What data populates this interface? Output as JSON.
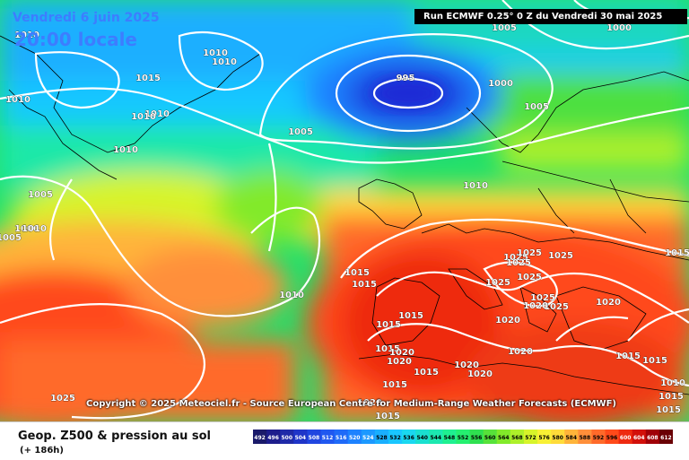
{
  "header": {
    "date": "Vendredi 6 juin 2025",
    "time": "20:00 locale",
    "run": "Run ECMWF 0.25° 0 Z du Vendredi 30 mai 2025"
  },
  "copyright": "Copyright © 2025 Meteociel.fr - Source European Centre for Medium-Range Weather Forecasts (ECMWF)",
  "product": {
    "title": "Geop. Z500 & pression au sol",
    "lead": "(+ 186h)"
  },
  "colors": {
    "low": "#1f2ad6",
    "mid": "#2fd24a",
    "high": "#ff4a1a"
  },
  "scale": {
    "values": [
      "492",
      "496",
      "500",
      "504",
      "508",
      "512",
      "516",
      "520",
      "524",
      "528",
      "532",
      "536",
      "540",
      "544",
      "548",
      "552",
      "556",
      "560",
      "564",
      "568",
      "572",
      "576",
      "580",
      "584",
      "588",
      "592",
      "596",
      "600",
      "604",
      "608",
      "612"
    ],
    "colors": [
      "#1a1a6a",
      "#1d1d8c",
      "#1f2aa8",
      "#1f35c8",
      "#2046e0",
      "#2058f0",
      "#1f6af8",
      "#1d82ff",
      "#1c99ff",
      "#1aafff",
      "#19c6ff",
      "#1ad8f0",
      "#1ae0d0",
      "#1ce8b0",
      "#1ff090",
      "#25f070",
      "#2fe050",
      "#57e23a",
      "#82ea2a",
      "#aef02a",
      "#d7f42a",
      "#f8f035",
      "#ffdb3a",
      "#ffb43a",
      "#ff8f3a",
      "#ff6a2a",
      "#ff4a1a",
      "#ee2a10",
      "#d2100a",
      "#a00008",
      "#6a0005"
    ]
  },
  "isobars": {
    "labels": [
      "1010",
      "1010",
      "1010",
      "1015",
      "1010",
      "1010",
      "1010",
      "1005",
      "995",
      "1000",
      "1005",
      "1005",
      "1010",
      "1005",
      "1000",
      "1000",
      "1010",
      "1015",
      "1015",
      "1010",
      "1025",
      "1025",
      "1025",
      "1025",
      "1025",
      "1025",
      "1025",
      "1020",
      "1020",
      "1025",
      "1015",
      "1015",
      "1015",
      "1020",
      "1020",
      "1015",
      "1020",
      "1020",
      "1015",
      "1015",
      "1020",
      "1020",
      "1015",
      "1015",
      "1010",
      "1015",
      "1015",
      "1015",
      "1020",
      "1025",
      "1005",
      "1010"
    ]
  }
}
